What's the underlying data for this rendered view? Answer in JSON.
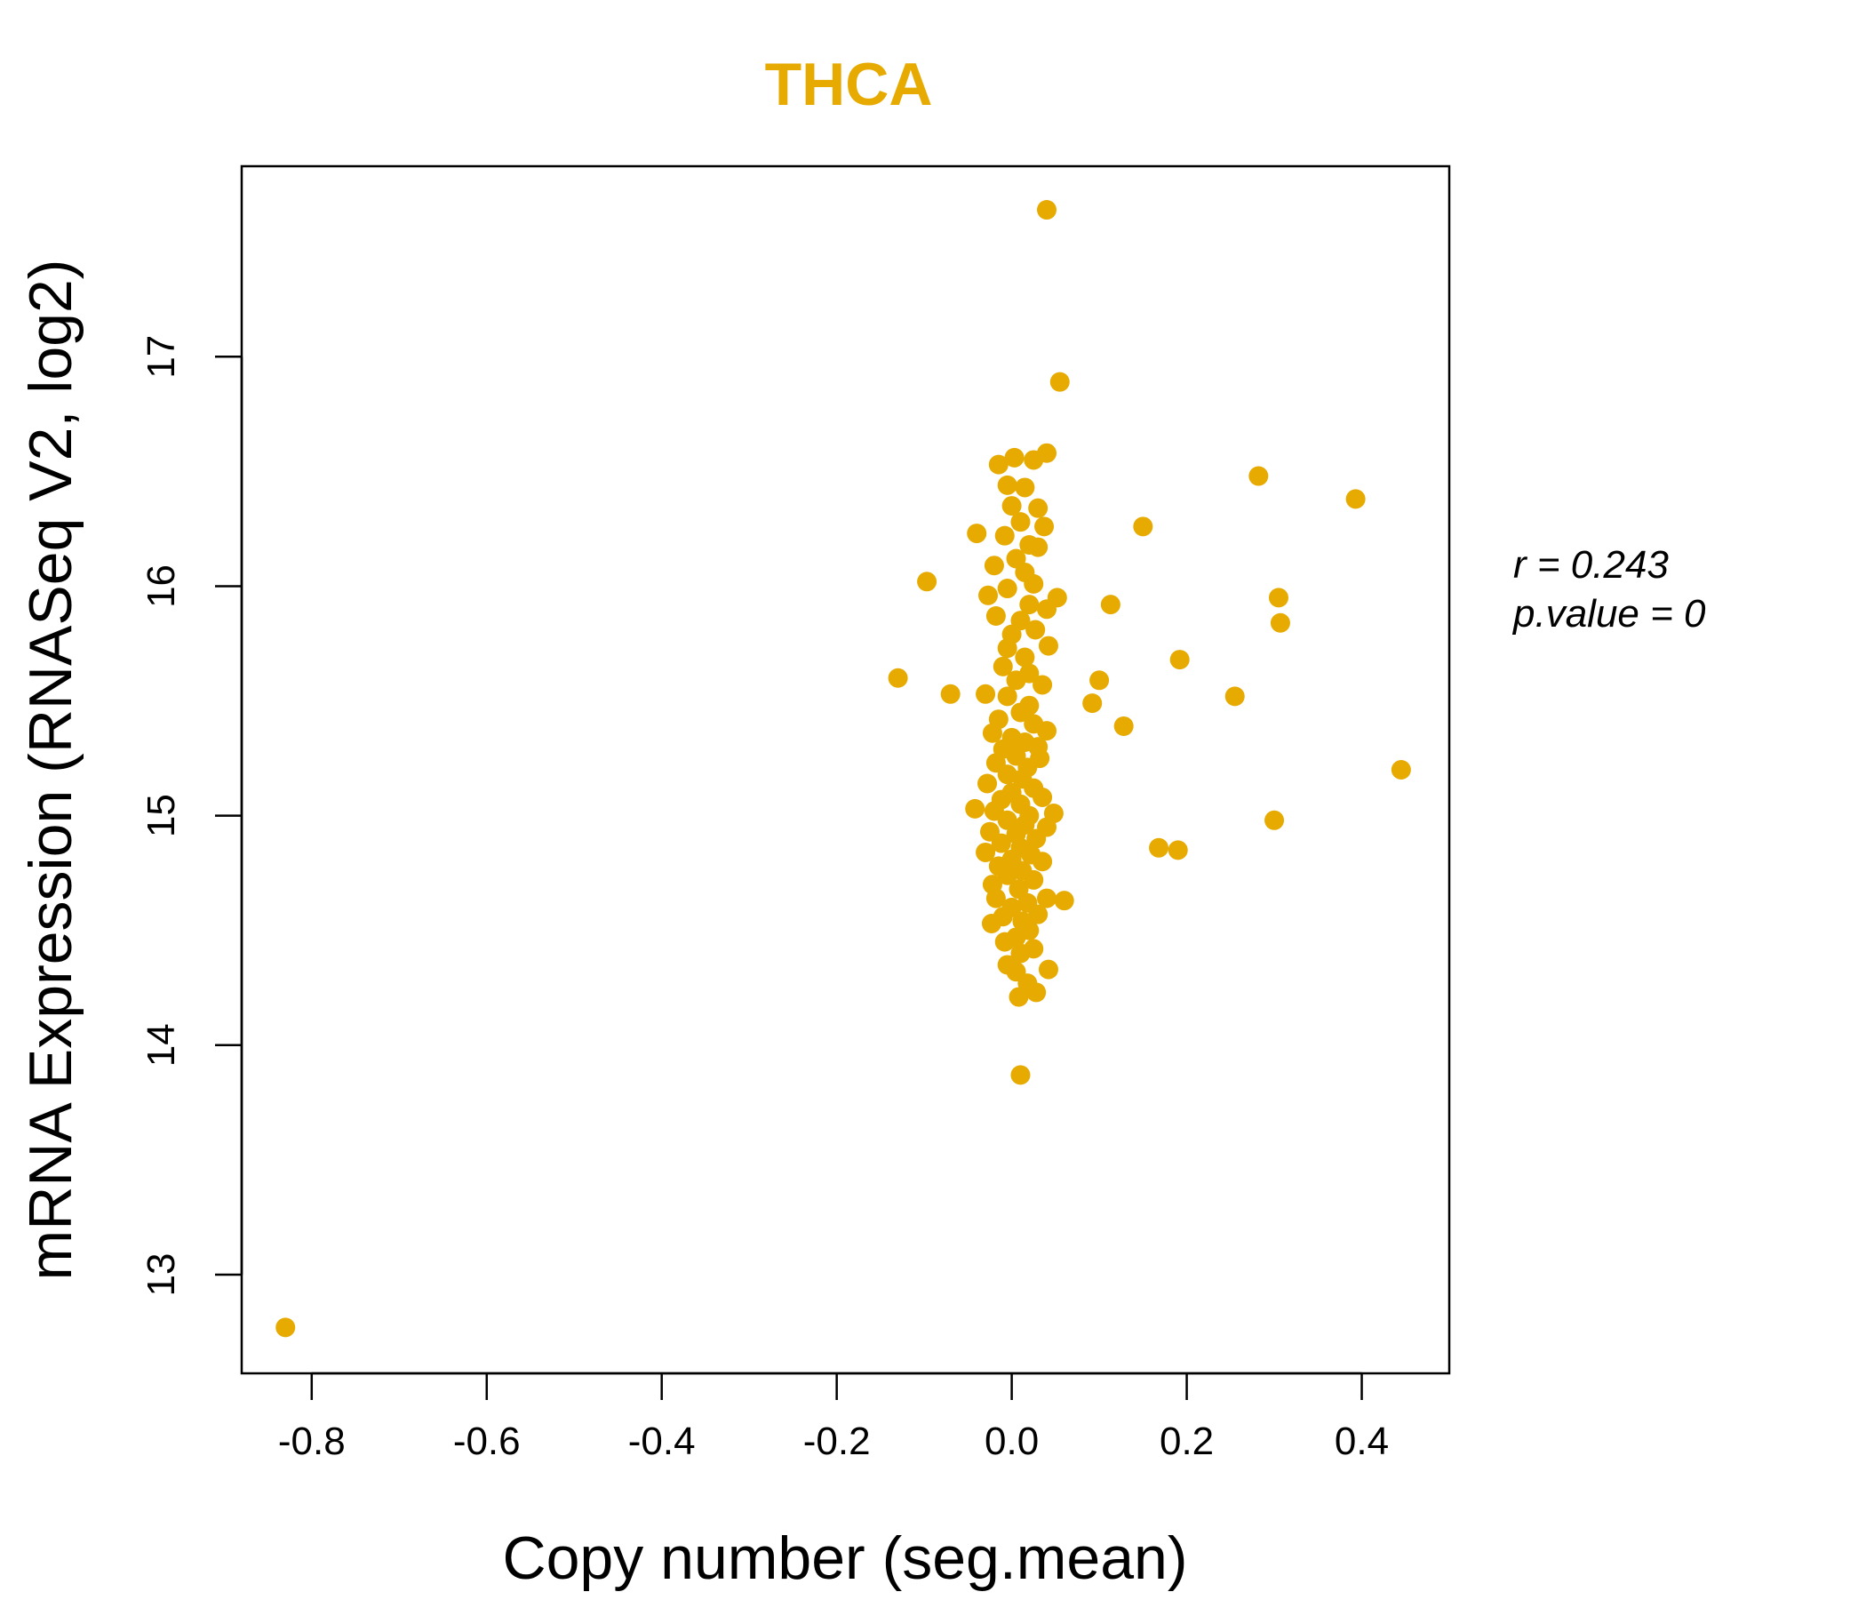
{
  "chart_data": {
    "type": "scatter",
    "title": "THCA",
    "xlabel": "Copy number (seg.mean)",
    "ylabel": "mRNA Expression (RNASeq V2, log2)",
    "xlim": [
      -0.88,
      0.5
    ],
    "ylim": [
      12.57,
      17.83
    ],
    "x_ticks": [
      "-0.8",
      "-0.6",
      "-0.4",
      "-0.2",
      "0.0",
      "0.2",
      "0.4"
    ],
    "y_ticks": [
      "13",
      "14",
      "15",
      "16",
      "17"
    ],
    "stats": {
      "r_label": "r = 0.243",
      "p_label": "p.value = 0"
    },
    "point_color": "#E6AA00",
    "title_color": "#E6AA00",
    "grid": false,
    "points": [
      {
        "x": -0.83,
        "y": 12.77
      },
      {
        "x": 0.04,
        "y": 17.64
      },
      {
        "x": 0.055,
        "y": 16.89
      },
      {
        "x": 0.01,
        "y": 13.87
      },
      {
        "x": 0.445,
        "y": 15.2
      },
      {
        "x": 0.393,
        "y": 16.38
      },
      {
        "x": 0.282,
        "y": 16.48
      },
      {
        "x": 0.305,
        "y": 15.95
      },
      {
        "x": 0.307,
        "y": 15.84
      },
      {
        "x": 0.3,
        "y": 14.98
      },
      {
        "x": 0.255,
        "y": 15.52
      },
      {
        "x": 0.192,
        "y": 15.68
      },
      {
        "x": 0.19,
        "y": 14.85
      },
      {
        "x": 0.168,
        "y": 14.86
      },
      {
        "x": 0.15,
        "y": 16.26
      },
      {
        "x": 0.128,
        "y": 15.39
      },
      {
        "x": 0.113,
        "y": 15.92
      },
      {
        "x": 0.1,
        "y": 15.59
      },
      {
        "x": 0.092,
        "y": 15.49
      },
      {
        "x": -0.13,
        "y": 15.6
      },
      {
        "x": -0.097,
        "y": 16.02
      },
      {
        "x": -0.07,
        "y": 15.53
      },
      {
        "x": -0.04,
        "y": 16.23
      },
      {
        "x": -0.042,
        "y": 15.03
      },
      {
        "x": 0.06,
        "y": 14.63
      },
      {
        "x": 0.042,
        "y": 14.33
      },
      {
        "x": 0.052,
        "y": 15.95
      },
      {
        "x": 0.04,
        "y": 16.58
      },
      {
        "x": 0.025,
        "y": 16.55
      },
      {
        "x": 0.003,
        "y": 16.56
      },
      {
        "x": -0.015,
        "y": 16.53
      },
      {
        "x": -0.005,
        "y": 16.44
      },
      {
        "x": 0.015,
        "y": 16.43
      },
      {
        "x": 0.03,
        "y": 16.34
      },
      {
        "x": 0.037,
        "y": 16.26
      },
      {
        "x": 0.0,
        "y": 16.35
      },
      {
        "x": 0.01,
        "y": 16.28
      },
      {
        "x": -0.008,
        "y": 16.22
      },
      {
        "x": 0.02,
        "y": 16.18
      },
      {
        "x": 0.03,
        "y": 16.17
      },
      {
        "x": 0.005,
        "y": 16.12
      },
      {
        "x": -0.02,
        "y": 16.09
      },
      {
        "x": 0.015,
        "y": 16.06
      },
      {
        "x": 0.025,
        "y": 16.01
      },
      {
        "x": -0.027,
        "y": 15.96
      },
      {
        "x": -0.005,
        "y": 15.99
      },
      {
        "x": 0.02,
        "y": 15.92
      },
      {
        "x": 0.04,
        "y": 15.9
      },
      {
        "x": -0.018,
        "y": 15.87
      },
      {
        "x": 0.01,
        "y": 15.85
      },
      {
        "x": 0.0,
        "y": 15.79
      },
      {
        "x": 0.027,
        "y": 15.81
      },
      {
        "x": 0.042,
        "y": 15.74
      },
      {
        "x": -0.005,
        "y": 15.73
      },
      {
        "x": 0.015,
        "y": 15.69
      },
      {
        "x": -0.01,
        "y": 15.65
      },
      {
        "x": 0.02,
        "y": 15.62
      },
      {
        "x": 0.035,
        "y": 15.57
      },
      {
        "x": 0.005,
        "y": 15.59
      },
      {
        "x": -0.03,
        "y": 15.53
      },
      {
        "x": -0.005,
        "y": 15.52
      },
      {
        "x": 0.02,
        "y": 15.48
      },
      {
        "x": 0.01,
        "y": 15.45
      },
      {
        "x": -0.015,
        "y": 15.42
      },
      {
        "x": 0.025,
        "y": 15.4
      },
      {
        "x": 0.04,
        "y": 15.37
      },
      {
        "x": -0.022,
        "y": 15.36
      },
      {
        "x": 0.0,
        "y": 15.34
      },
      {
        "x": 0.015,
        "y": 15.32
      },
      {
        "x": 0.03,
        "y": 15.3
      },
      {
        "x": -0.01,
        "y": 15.29
      },
      {
        "x": 0.005,
        "y": 15.26
      },
      {
        "x": 0.032,
        "y": 15.25
      },
      {
        "x": -0.018,
        "y": 15.23
      },
      {
        "x": 0.018,
        "y": 15.21
      },
      {
        "x": -0.005,
        "y": 15.18
      },
      {
        "x": 0.012,
        "y": 15.16
      },
      {
        "x": -0.028,
        "y": 15.14
      },
      {
        "x": 0.025,
        "y": 15.12
      },
      {
        "x": 0.0,
        "y": 15.1
      },
      {
        "x": 0.035,
        "y": 15.08
      },
      {
        "x": -0.012,
        "y": 15.07
      },
      {
        "x": 0.01,
        "y": 15.05
      },
      {
        "x": 0.048,
        "y": 15.01
      },
      {
        "x": -0.02,
        "y": 15.02
      },
      {
        "x": 0.02,
        "y": 15.0
      },
      {
        "x": -0.005,
        "y": 14.98
      },
      {
        "x": 0.015,
        "y": 14.96
      },
      {
        "x": 0.04,
        "y": 14.95
      },
      {
        "x": -0.025,
        "y": 14.93
      },
      {
        "x": 0.005,
        "y": 14.92
      },
      {
        "x": 0.028,
        "y": 14.9
      },
      {
        "x": -0.012,
        "y": 14.88
      },
      {
        "x": 0.01,
        "y": 14.86
      },
      {
        "x": -0.03,
        "y": 14.84
      },
      {
        "x": 0.022,
        "y": 14.83
      },
      {
        "x": 0.0,
        "y": 14.81
      },
      {
        "x": 0.035,
        "y": 14.8
      },
      {
        "x": -0.015,
        "y": 14.78
      },
      {
        "x": 0.012,
        "y": 14.76
      },
      {
        "x": -0.005,
        "y": 14.74
      },
      {
        "x": 0.025,
        "y": 14.72
      },
      {
        "x": -0.022,
        "y": 14.7
      },
      {
        "x": 0.008,
        "y": 14.68
      },
      {
        "x": 0.04,
        "y": 14.64
      },
      {
        "x": -0.018,
        "y": 14.64
      },
      {
        "x": 0.018,
        "y": 14.62
      },
      {
        "x": 0.0,
        "y": 14.6
      },
      {
        "x": 0.03,
        "y": 14.57
      },
      {
        "x": -0.01,
        "y": 14.56
      },
      {
        "x": 0.012,
        "y": 14.54
      },
      {
        "x": -0.023,
        "y": 14.53
      },
      {
        "x": 0.02,
        "y": 14.5
      },
      {
        "x": 0.005,
        "y": 14.47
      },
      {
        "x": -0.008,
        "y": 14.45
      },
      {
        "x": 0.025,
        "y": 14.42
      },
      {
        "x": 0.01,
        "y": 14.4
      },
      {
        "x": -0.005,
        "y": 14.35
      },
      {
        "x": 0.005,
        "y": 14.32
      },
      {
        "x": 0.018,
        "y": 14.27
      },
      {
        "x": 0.028,
        "y": 14.23
      },
      {
        "x": 0.008,
        "y": 14.21
      }
    ]
  }
}
